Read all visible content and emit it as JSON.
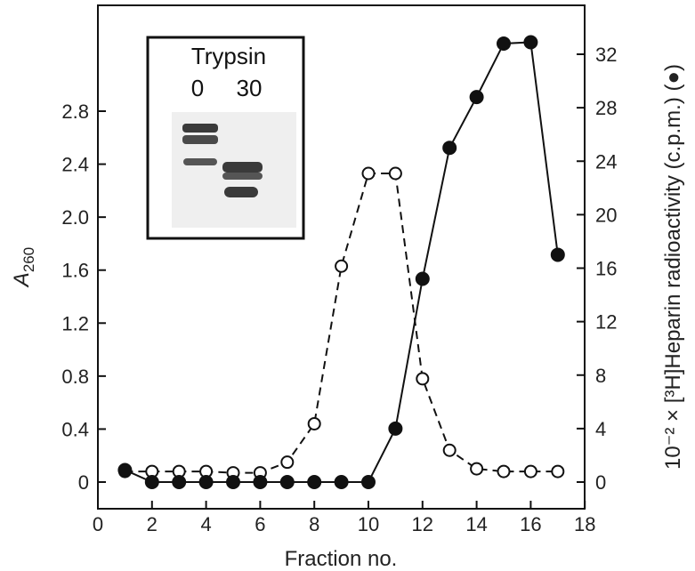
{
  "chart_data": {
    "type": "line",
    "xlabel": "Fraction no.",
    "ylabel_left": "A",
    "ylabel_left_sub": "260",
    "ylabel_right": "10⁻² × [³H]Heparin radioactivity (c.p.m.) (●)",
    "x_ticks": [
      0,
      2,
      4,
      6,
      8,
      10,
      12,
      14,
      16,
      18
    ],
    "y_left_ticks": [
      "0",
      "0.4",
      "0.8",
      "1.2",
      "1.6",
      "2.0",
      "2.4",
      "2.8"
    ],
    "y_right_ticks": [
      "0",
      "4",
      "8",
      "12",
      "16",
      "20",
      "24",
      "28",
      "32"
    ],
    "xlim": [
      0,
      18
    ],
    "ylim_left": [
      0,
      3.45
    ],
    "ylim_right": [
      0,
      34.5
    ],
    "grid": false,
    "series": [
      {
        "axis": "left",
        "style": "dashed-open-circles",
        "x": [
          1,
          2,
          3,
          4,
          5,
          6,
          7,
          8,
          9,
          10,
          11,
          12,
          13,
          14,
          15,
          16,
          17
        ],
        "values": [
          0.08,
          0.08,
          0.08,
          0.08,
          0.07,
          0.07,
          0.15,
          0.44,
          1.63,
          2.33,
          2.33,
          0.78,
          0.24,
          0.1,
          0.08,
          0.08,
          0.08
        ]
      },
      {
        "axis": "right",
        "style": "solid-filled-circles",
        "x": [
          1,
          2,
          3,
          4,
          5,
          6,
          7,
          8,
          9,
          10,
          11,
          12,
          13,
          14,
          15,
          16,
          17
        ],
        "values": [
          0.9,
          0,
          0,
          0,
          0,
          0,
          0,
          0,
          0,
          0,
          4,
          15.2,
          25,
          28.8,
          32.8,
          32.9,
          17
        ]
      }
    ],
    "inset": {
      "title": "Trypsin",
      "lane_labels": [
        "0",
        "30"
      ]
    }
  }
}
